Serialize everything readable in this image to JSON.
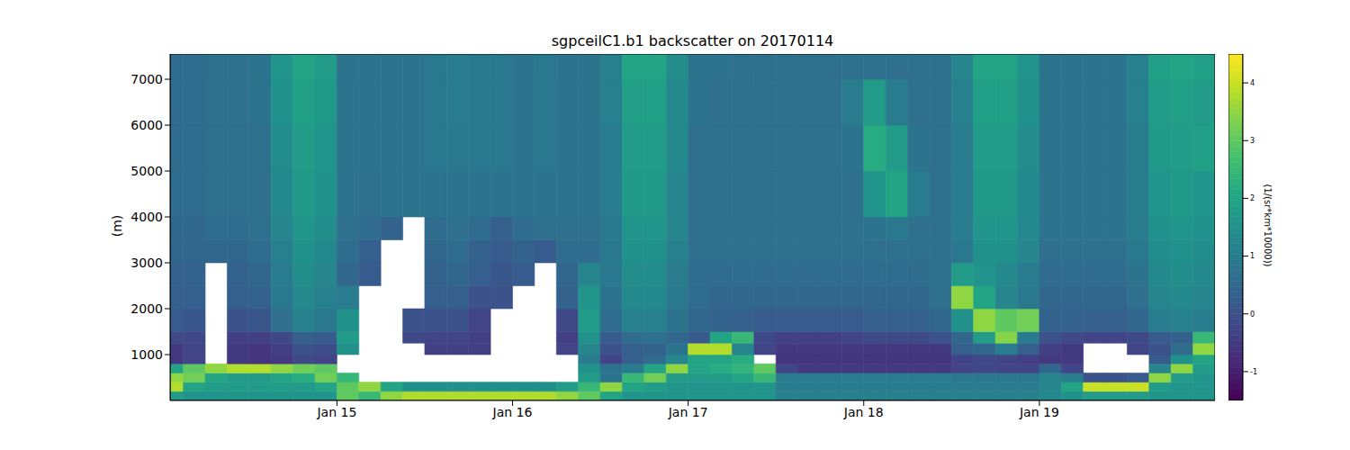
{
  "chart_data": {
    "type": "heatmap",
    "title": "sgpceilC1.b1 backscatter on 20170114",
    "y_label": "(m)",
    "xlim": [
      14.05,
      20
    ],
    "xticks": [
      {
        "value": 15,
        "label": "Jan 15"
      },
      {
        "value": 16,
        "label": "Jan 16"
      },
      {
        "value": 17,
        "label": "Jan 17"
      },
      {
        "value": 18,
        "label": "Jan 18"
      },
      {
        "value": 19,
        "label": "Jan 19"
      }
    ],
    "ylim": [
      0,
      7550
    ],
    "yticks": [
      1000,
      2000,
      3000,
      4000,
      5000,
      6000,
      7000
    ],
    "x_edges": [
      14,
      14.125,
      14.25,
      14.375,
      14.5,
      14.625,
      14.75,
      14.875,
      15,
      15.125,
      15.25,
      15.375,
      15.5,
      15.625,
      15.75,
      15.875,
      16,
      16.125,
      16.25,
      16.375,
      16.5,
      16.625,
      16.75,
      16.875,
      17,
      17.125,
      17.25,
      17.375,
      17.5,
      17.625,
      17.75,
      17.875,
      18,
      18.125,
      18.25,
      18.375,
      18.5,
      18.625,
      18.75,
      18.875,
      19,
      19.125,
      19.25,
      19.375,
      19.5,
      19.625,
      19.75,
      19.875,
      20
    ],
    "y_edges": [
      0,
      200,
      400,
      600,
      800,
      1000,
      1250,
      1500,
      2000,
      2500,
      3000,
      3500,
      4000,
      5000,
      6000,
      7000,
      7550
    ],
    "values": [
      [
        1.8,
        1.6,
        1.6,
        1.6,
        1.6,
        1.6,
        1.6,
        1.6,
        3.0,
        2.5,
        3.5,
        3.8,
        3.8,
        3.8,
        3.8,
        3.8,
        3.8,
        3.8,
        3.5,
        3.0,
        2.0,
        1.6,
        1.6,
        1.6,
        1.6,
        1.6,
        1.6,
        1.6,
        1.1,
        1.1,
        1.1,
        1.1,
        1.1,
        1.1,
        1.1,
        1.1,
        1.1,
        1.1,
        1.1,
        1.1,
        1.3,
        1.5,
        1.8,
        1.8,
        1.8,
        1.6,
        1.6,
        1.6
      ],
      [
        3.8,
        2.0,
        1.8,
        1.8,
        1.8,
        1.8,
        1.8,
        2.0,
        3.0,
        3.5,
        2.0,
        1.5,
        1.5,
        1.5,
        1.5,
        1.5,
        1.5,
        1.5,
        1.8,
        2.5,
        3.5,
        2.0,
        1.8,
        1.6,
        1.6,
        1.6,
        1.6,
        1.6,
        1.0,
        1.0,
        1.0,
        1.0,
        1.0,
        1.0,
        1.0,
        1.0,
        1.0,
        1.0,
        1.0,
        1.0,
        1.2,
        2.0,
        4.0,
        4.0,
        4.0,
        1.8,
        1.6,
        1.6
      ],
      [
        3.5,
        3.2,
        2.0,
        1.8,
        1.8,
        2.0,
        2.2,
        3.2,
        2.5,
        null,
        null,
        null,
        null,
        null,
        null,
        null,
        null,
        null,
        null,
        1.8,
        0.8,
        2.5,
        3.2,
        1.8,
        1.8,
        1.8,
        2.0,
        2.5,
        1.0,
        1.0,
        1.0,
        1.0,
        1.0,
        1.0,
        1.0,
        1.0,
        0.9,
        0.9,
        0.9,
        0.9,
        1.2,
        1.0,
        0.0,
        0.0,
        0.2,
        3.5,
        1.8,
        1.6
      ],
      [
        2.0,
        3.0,
        3.5,
        3.8,
        3.8,
        3.5,
        3.2,
        3.0,
        null,
        null,
        null,
        null,
        null,
        null,
        null,
        null,
        null,
        null,
        null,
        1.5,
        0.8,
        1.0,
        2.0,
        3.5,
        2.0,
        2.2,
        2.4,
        3.0,
        -0.3,
        -0.5,
        -0.5,
        -0.5,
        -0.5,
        -0.5,
        -0.5,
        -0.5,
        -0.3,
        -0.2,
        -0.3,
        -0.3,
        0.5,
        -0.3,
        null,
        null,
        null,
        1.2,
        3.5,
        1.8
      ],
      [
        -0.5,
        -0.3,
        null,
        -0.5,
        -0.6,
        -0.5,
        -0.2,
        -0.3,
        null,
        null,
        null,
        null,
        null,
        null,
        null,
        null,
        null,
        null,
        null,
        1.0,
        -0.3,
        0.3,
        0.6,
        1.2,
        2.0,
        2.0,
        2.2,
        null,
        -0.6,
        -0.6,
        -0.6,
        -0.6,
        -0.6,
        -0.6,
        -0.6,
        -0.6,
        -0.3,
        -0.2,
        -0.3,
        -0.4,
        -0.5,
        -0.5,
        null,
        null,
        null,
        0.2,
        1.5,
        2.0
      ],
      [
        -0.5,
        -0.3,
        null,
        -0.5,
        -0.6,
        -0.4,
        0.0,
        -0.1,
        1.5,
        null,
        null,
        null,
        -0.4,
        -0.4,
        -0.4,
        null,
        null,
        null,
        -0.3,
        1.2,
        0.0,
        0.3,
        0.4,
        0.8,
        3.8,
        3.8,
        1.2,
        -0.3,
        -0.5,
        -0.5,
        -0.5,
        -0.5,
        -0.5,
        -0.5,
        -0.5,
        -0.5,
        0.3,
        0.5,
        1.0,
        0.3,
        -0.4,
        -0.5,
        null,
        null,
        -0.3,
        0.0,
        0.6,
        3.5
      ],
      [
        -0.2,
        -0.2,
        null,
        -0.4,
        -0.4,
        -0.2,
        0.3,
        0.2,
        1.8,
        null,
        null,
        -0.2,
        -0.3,
        -0.3,
        -0.4,
        null,
        null,
        null,
        -0.4,
        1.5,
        0.2,
        0.6,
        0.7,
        0.5,
        0.2,
        2.0,
        2.5,
        -0.2,
        -0.4,
        -0.4,
        -0.4,
        -0.3,
        -0.2,
        -0.2,
        -0.2,
        0.0,
        0.5,
        1.8,
        3.4,
        1.0,
        0.0,
        -0.2,
        -0.3,
        -0.3,
        -0.2,
        0.2,
        0.4,
        2.5
      ],
      [
        0.2,
        0.1,
        null,
        0.0,
        0.1,
        0.7,
        1.1,
        0.9,
        1.5,
        null,
        null,
        0.0,
        0.0,
        0.0,
        -0.3,
        null,
        null,
        null,
        -0.2,
        1.8,
        0.6,
        1.1,
        1.1,
        0.8,
        0.5,
        0.4,
        0.3,
        0.2,
        0.2,
        0.2,
        0.2,
        0.2,
        0.3,
        0.3,
        0.3,
        0.5,
        1.5,
        3.5,
        3.0,
        3.2,
        0.4,
        0.4,
        0.3,
        0.3,
        0.5,
        1.0,
        1.1,
        1.0
      ],
      [
        0.3,
        0.3,
        null,
        0.3,
        0.4,
        0.9,
        1.3,
        1.1,
        1.0,
        null,
        null,
        null,
        0.3,
        0.3,
        0.0,
        0.0,
        null,
        null,
        0.4,
        1.6,
        0.8,
        1.3,
        1.3,
        0.9,
        0.6,
        0.5,
        0.5,
        0.5,
        0.5,
        0.5,
        0.5,
        0.5,
        0.5,
        0.5,
        0.5,
        0.7,
        3.5,
        2.0,
        1.2,
        0.9,
        0.5,
        0.5,
        0.5,
        0.5,
        0.7,
        1.2,
        1.3,
        1.2
      ],
      [
        0.4,
        0.4,
        null,
        0.4,
        0.5,
        1.0,
        1.4,
        1.2,
        0.5,
        0.2,
        null,
        null,
        0.4,
        0.5,
        0.3,
        0.1,
        0.2,
        null,
        0.5,
        1.2,
        0.9,
        1.4,
        1.4,
        1.0,
        0.6,
        0.6,
        0.6,
        0.6,
        0.6,
        0.6,
        0.6,
        0.6,
        0.6,
        0.6,
        0.6,
        0.7,
        1.8,
        1.6,
        1.3,
        1.0,
        0.6,
        0.6,
        0.6,
        0.6,
        0.8,
        1.3,
        1.4,
        1.3
      ],
      [
        0.5,
        0.5,
        0.5,
        0.5,
        0.6,
        1.1,
        1.5,
        1.3,
        0.6,
        0.3,
        null,
        null,
        0.5,
        0.6,
        0.4,
        0.2,
        0.4,
        0.2,
        0.6,
        0.6,
        0.9,
        1.5,
        1.5,
        1.1,
        0.7,
        0.7,
        0.7,
        0.7,
        0.7,
        0.7,
        0.7,
        0.7,
        0.7,
        0.7,
        0.7,
        0.7,
        0.9,
        1.5,
        1.5,
        1.2,
        0.7,
        0.7,
        0.7,
        0.7,
        0.9,
        1.4,
        1.5,
        1.4
      ],
      [
        0.5,
        0.5,
        0.6,
        0.6,
        0.7,
        1.2,
        1.6,
        1.4,
        0.7,
        0.6,
        0.4,
        null,
        0.6,
        0.7,
        0.6,
        0.3,
        0.6,
        0.7,
        0.7,
        0.7,
        0.9,
        1.6,
        1.6,
        1.2,
        0.7,
        0.7,
        0.7,
        0.7,
        0.7,
        0.7,
        0.7,
        0.7,
        0.8,
        0.9,
        0.7,
        0.7,
        1.0,
        1.6,
        1.6,
        1.3,
        0.8,
        0.8,
        0.8,
        0.8,
        1.0,
        1.5,
        1.6,
        1.5
      ],
      [
        0.6,
        0.6,
        0.7,
        0.7,
        0.7,
        1.3,
        1.7,
        1.5,
        0.8,
        0.7,
        0.8,
        0.8,
        0.8,
        0.8,
        0.8,
        0.8,
        0.8,
        0.8,
        0.8,
        0.8,
        1.0,
        1.7,
        1.7,
        1.2,
        0.7,
        0.7,
        0.7,
        0.7,
        0.7,
        0.7,
        0.7,
        0.7,
        1.6,
        2.0,
        1.0,
        0.7,
        1.0,
        1.7,
        1.7,
        1.3,
        0.8,
        0.8,
        0.8,
        0.8,
        1.0,
        1.6,
        1.7,
        1.6
      ],
      [
        0.6,
        0.6,
        0.7,
        0.7,
        0.7,
        1.4,
        1.8,
        1.6,
        0.8,
        0.8,
        0.8,
        0.8,
        0.9,
        0.9,
        0.9,
        0.9,
        0.8,
        0.9,
        0.8,
        0.8,
        1.0,
        1.8,
        1.8,
        1.3,
        0.7,
        0.7,
        0.7,
        0.7,
        0.7,
        0.7,
        0.7,
        0.8,
        2.2,
        1.8,
        0.8,
        0.7,
        1.0,
        1.8,
        1.8,
        1.4,
        0.8,
        0.8,
        0.8,
        0.8,
        1.0,
        1.7,
        1.8,
        1.9
      ],
      [
        0.6,
        0.6,
        0.7,
        0.7,
        0.8,
        1.5,
        1.9,
        1.7,
        0.8,
        0.8,
        0.8,
        0.8,
        0.9,
        1.0,
        0.9,
        0.9,
        0.8,
        0.9,
        0.8,
        0.8,
        1.1,
        1.9,
        1.9,
        1.3,
        0.8,
        0.7,
        0.7,
        0.7,
        0.7,
        0.7,
        0.7,
        1.0,
        1.8,
        1.0,
        0.7,
        0.7,
        1.1,
        1.9,
        1.9,
        1.5,
        0.8,
        0.8,
        0.8,
        0.8,
        1.1,
        1.8,
        1.9,
        1.8
      ],
      [
        0.6,
        0.6,
        0.7,
        0.7,
        0.8,
        1.6,
        2.0,
        1.8,
        0.8,
        0.8,
        0.8,
        0.8,
        0.9,
        1.0,
        0.9,
        0.9,
        0.8,
        0.9,
        0.8,
        0.8,
        1.1,
        2.0,
        2.0,
        1.4,
        0.8,
        0.8,
        0.7,
        0.7,
        0.7,
        0.7,
        0.7,
        0.7,
        0.7,
        0.7,
        0.7,
        0.7,
        1.2,
        2.0,
        2.0,
        1.6,
        0.8,
        0.8,
        0.8,
        0.8,
        1.1,
        1.9,
        2.0,
        1.9
      ]
    ],
    "colorbar": {
      "range": [
        -1.5,
        4.5
      ],
      "ticks": [
        -1,
        0,
        1,
        2,
        3,
        4
      ],
      "label": "(1/(sr*km*10000))"
    }
  }
}
